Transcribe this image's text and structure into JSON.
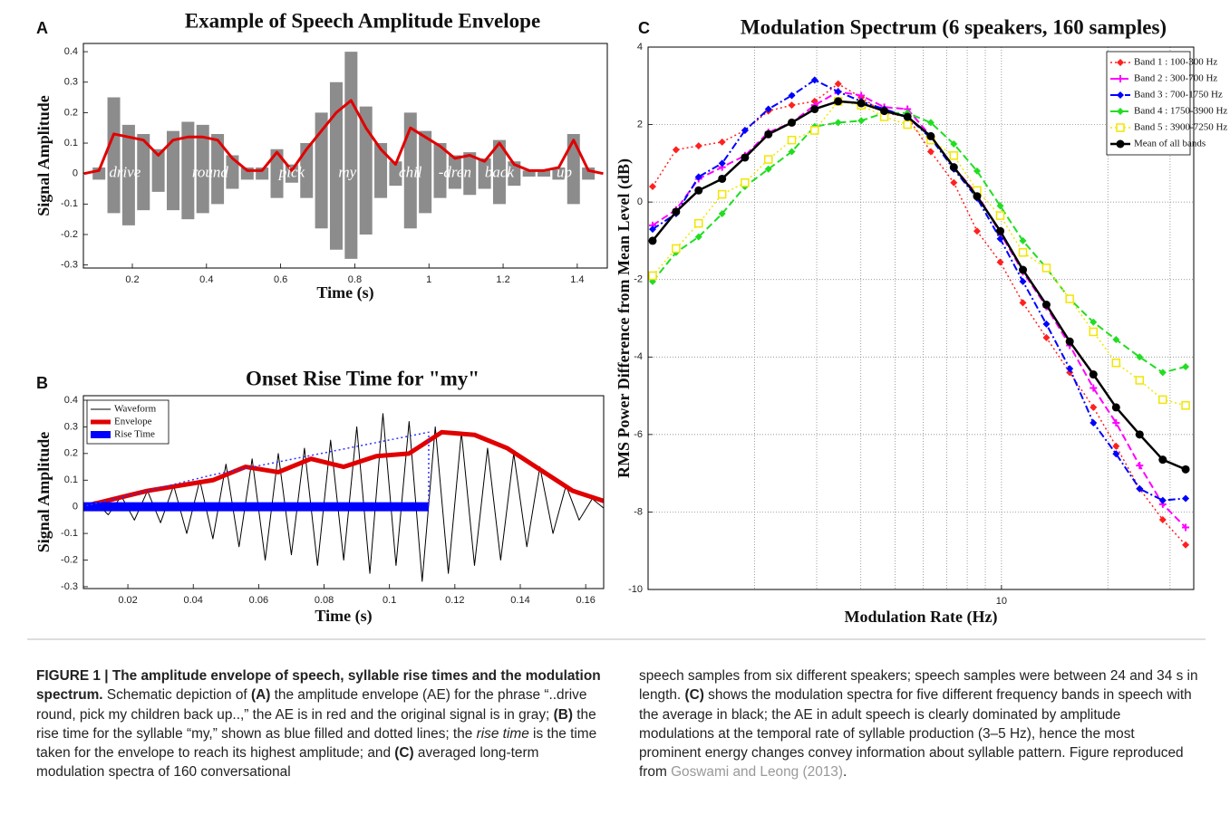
{
  "chart_data": [
    {
      "type": "line",
      "panel": "A",
      "title": "Example of Speech Amplitude Envelope",
      "xlabel": "Time (s)",
      "ylabel": "Signal Amplitude",
      "xlim": [
        0.068,
        1.481
      ],
      "ylim": [
        -0.31,
        0.427
      ],
      "xticks": [
        0.2,
        0.4,
        0.6,
        0.8,
        1,
        1.2,
        1.4
      ],
      "yticks": [
        0.4,
        0.3,
        0.2,
        0.1,
        0,
        -0.1,
        -0.2,
        -0.3
      ],
      "grid": false,
      "syllables": [
        "drive",
        "round",
        "pick",
        "my",
        "chil",
        "-dren",
        "back",
        "up"
      ],
      "x": [
        0.07,
        0.11,
        0.15,
        0.19,
        0.23,
        0.27,
        0.31,
        0.35,
        0.39,
        0.43,
        0.47,
        0.51,
        0.55,
        0.59,
        0.63,
        0.67,
        0.71,
        0.75,
        0.79,
        0.83,
        0.87,
        0.91,
        0.95,
        0.99,
        1.03,
        1.07,
        1.11,
        1.15,
        1.19,
        1.23,
        1.27,
        1.31,
        1.35,
        1.39,
        1.43,
        1.47
      ],
      "series": [
        {
          "kind": "band",
          "color": "#8c8c8c",
          "upper": [
            0,
            0.02,
            0.25,
            0.16,
            0.13,
            0.08,
            0.14,
            0.17,
            0.16,
            0.13,
            0.06,
            0.02,
            0.02,
            0.08,
            0.03,
            0.1,
            0.2,
            0.3,
            0.4,
            0.22,
            0.1,
            0.04,
            0.2,
            0.14,
            0.1,
            0.06,
            0.07,
            0.05,
            0.11,
            0.04,
            0.01,
            0.01,
            0.02,
            0.13,
            0.02,
            0
          ],
          "lower": [
            0,
            -0.02,
            -0.13,
            -0.17,
            -0.12,
            -0.06,
            -0.12,
            -0.15,
            -0.13,
            -0.1,
            -0.05,
            -0.02,
            -0.02,
            -0.08,
            -0.03,
            -0.08,
            -0.18,
            -0.25,
            -0.28,
            -0.2,
            -0.08,
            -0.04,
            -0.18,
            -0.13,
            -0.08,
            -0.05,
            -0.07,
            -0.05,
            -0.1,
            -0.04,
            -0.01,
            -0.01,
            -0.02,
            -0.1,
            -0.02,
            0
          ]
        },
        {
          "color": "#e00000",
          "width": 3,
          "values": [
            0,
            0.01,
            0.13,
            0.12,
            0.11,
            0.06,
            0.11,
            0.12,
            0.12,
            0.11,
            0.05,
            0.01,
            0.01,
            0.07,
            0.01,
            0.08,
            0.14,
            0.2,
            0.24,
            0.15,
            0.08,
            0.03,
            0.15,
            0.12,
            0.09,
            0.05,
            0.06,
            0.04,
            0.1,
            0.03,
            0.01,
            0.01,
            0.02,
            0.11,
            0.01,
            0
          ]
        }
      ]
    },
    {
      "type": "line",
      "panel": "B",
      "title": "Onset Rise Time for \"my\"",
      "xlabel": "Time (s)",
      "ylabel": "Signal Amplitude",
      "xlim": [
        0.0064,
        0.1655
      ],
      "ylim": [
        -0.307,
        0.417
      ],
      "xticks": [
        0.02,
        0.04,
        0.06,
        0.08,
        0.1,
        0.12,
        0.14,
        0.16
      ],
      "yticks": [
        0.4,
        0.3,
        0.2,
        0.1,
        0,
        -0.1,
        -0.2,
        -0.3
      ],
      "grid": false,
      "legend": "upper left",
      "series": [
        {
          "name": "Waveform",
          "color": "#000000",
          "width": 1,
          "x": [
            0.006,
            0.01,
            0.014,
            0.018,
            0.022,
            0.026,
            0.03,
            0.034,
            0.038,
            0.042,
            0.046,
            0.05,
            0.054,
            0.058,
            0.062,
            0.066,
            0.07,
            0.074,
            0.078,
            0.082,
            0.086,
            0.09,
            0.094,
            0.098,
            0.102,
            0.106,
            0.11,
            0.114,
            0.118,
            0.122,
            0.126,
            0.13,
            0.134,
            0.138,
            0.142,
            0.146,
            0.15,
            0.154,
            0.158,
            0.162,
            0.166
          ],
          "values": [
            0,
            0.02,
            -0.03,
            0.04,
            -0.05,
            0.06,
            -0.06,
            0.08,
            -0.1,
            0.1,
            -0.12,
            0.16,
            -0.15,
            0.18,
            -0.2,
            0.2,
            -0.18,
            0.22,
            -0.22,
            0.25,
            -0.2,
            0.3,
            -0.25,
            0.35,
            -0.22,
            0.32,
            -0.28,
            0.3,
            -0.25,
            0.28,
            -0.22,
            0.22,
            -0.2,
            0.2,
            -0.15,
            0.15,
            -0.1,
            0.08,
            -0.05,
            0.03,
            -0.01
          ]
        },
        {
          "name": "Envelope",
          "color": "#e00000",
          "width": 5,
          "x": [
            0.006,
            0.016,
            0.026,
            0.036,
            0.046,
            0.056,
            0.066,
            0.076,
            0.086,
            0.096,
            0.106,
            0.116,
            0.126,
            0.136,
            0.146,
            0.156,
            0.166
          ],
          "values": [
            0,
            0.03,
            0.06,
            0.08,
            0.1,
            0.15,
            0.13,
            0.18,
            0.15,
            0.19,
            0.2,
            0.28,
            0.27,
            0.22,
            0.14,
            0.06,
            0.02
          ]
        },
        {
          "name": "Rise Time",
          "color": "#0000ff",
          "width": 10,
          "x": [
            0.006,
            0.112
          ],
          "values": [
            0,
            0
          ]
        },
        {
          "color": "#3333ff",
          "width": 1.5,
          "dash": "dot",
          "x": [
            0.006,
            0.046,
            0.112,
            0.112
          ],
          "values": [
            0,
            0.12,
            0.28,
            0
          ]
        }
      ]
    },
    {
      "type": "line",
      "panel": "C",
      "title": "Modulation Spectrum (6 speakers, 160 samples)",
      "xlabel": "Modulation Rate (Hz)",
      "ylabel": "RMS Power Difference from Mean Level (dB)",
      "xlog": true,
      "xlim": [
        1,
        35
      ],
      "ylim": [
        -10,
        4
      ],
      "xticks": [
        10
      ],
      "xminor": [
        2,
        3,
        4,
        5,
        6,
        7,
        8,
        9,
        20,
        30
      ],
      "yticks": [
        4,
        2,
        0,
        -2,
        -4,
        -6,
        -8,
        -10
      ],
      "grid": true,
      "legend": "upper right",
      "x": [
        1.03,
        1.2,
        1.39,
        1.62,
        1.88,
        2.19,
        2.55,
        2.96,
        3.45,
        4.01,
        4.66,
        5.42,
        6.31,
        7.33,
        8.53,
        9.92,
        11.5,
        13.4,
        15.6,
        18.2,
        21.1,
        24.6,
        28.6,
        33.2
      ],
      "series": [
        {
          "name": "Band 1 : 100-300 Hz",
          "color": "#ff2020",
          "dash": "dot",
          "marker": "diamond",
          "width": 1.5,
          "values": [
            0.4,
            1.35,
            1.45,
            1.55,
            1.85,
            2.35,
            2.5,
            2.6,
            3.05,
            2.7,
            2.3,
            2.2,
            1.3,
            0.5,
            -0.75,
            -1.55,
            -2.6,
            -3.5,
            -4.4,
            -5.3,
            -6.3,
            -7.4,
            -8.2,
            -8.85
          ]
        },
        {
          "name": "Band 2 : 300-700 Hz",
          "color": "#ff00ff",
          "dash": "dash",
          "marker": "plus",
          "width": 2,
          "values": [
            -0.6,
            -0.2,
            0.6,
            0.9,
            1.2,
            1.8,
            2.05,
            2.5,
            2.85,
            2.75,
            2.45,
            2.4,
            1.7,
            0.9,
            0.2,
            -0.8,
            -1.8,
            -2.7,
            -3.7,
            -4.8,
            -5.7,
            -6.8,
            -7.8,
            -8.4
          ]
        },
        {
          "name": "Band 3 : 700-1750 Hz",
          "color": "#0000ff",
          "dash": "dashdot",
          "marker": "diamond",
          "width": 2,
          "values": [
            -0.7,
            -0.3,
            0.65,
            1.0,
            1.85,
            2.4,
            2.75,
            3.15,
            2.85,
            2.6,
            2.4,
            2.2,
            1.65,
            0.85,
            0.1,
            -0.95,
            -2.05,
            -3.15,
            -4.3,
            -5.7,
            -6.5,
            -7.4,
            -7.7,
            -7.65
          ]
        },
        {
          "name": "Band 4 : 1750-3900 Hz",
          "color": "#22dd22",
          "dash": "dash",
          "marker": "diamond",
          "width": 2,
          "values": [
            -2.05,
            -1.3,
            -0.9,
            -0.3,
            0.4,
            0.85,
            1.3,
            1.95,
            2.05,
            2.1,
            2.3,
            2.3,
            2.05,
            1.5,
            0.8,
            -0.1,
            -1.0,
            -1.7,
            -2.5,
            -3.1,
            -3.55,
            -4.0,
            -4.4,
            -4.25
          ]
        },
        {
          "name": "Band 5 : 3900-7250 Hz",
          "color": "#f2e600",
          "dash": "dot",
          "marker": "square-open",
          "width": 1.5,
          "values": [
            -1.9,
            -1.2,
            -0.55,
            0.2,
            0.5,
            1.1,
            1.6,
            1.85,
            2.6,
            2.5,
            2.2,
            2.0,
            1.6,
            1.2,
            0.3,
            -0.35,
            -1.3,
            -1.7,
            -2.5,
            -3.35,
            -4.15,
            -4.6,
            -5.1,
            -5.25
          ]
        },
        {
          "name": "Mean of all bands",
          "color": "#000000",
          "dash": "solid",
          "marker": "circle",
          "width": 2.5,
          "values": [
            -1.0,
            -0.25,
            0.3,
            0.6,
            1.15,
            1.75,
            2.05,
            2.4,
            2.6,
            2.55,
            2.35,
            2.2,
            1.7,
            0.9,
            0.15,
            -0.75,
            -1.75,
            -2.65,
            -3.6,
            -4.45,
            -5.3,
            -6.0,
            -6.65,
            -6.9
          ]
        }
      ]
    }
  ],
  "caption": {
    "left": [
      {
        "text": "FIGURE 1 | The amplitude envelope of speech, syllable rise times and the modulation spectrum.",
        "bold": true
      },
      {
        "text": " Schematic depiction of "
      },
      {
        "text": "(A)",
        "bold": true
      },
      {
        "text": " the amplitude envelope (AE) for the phrase “..drive round, pick my children back up..,” the AE is in red and the original signal is in gray; "
      },
      {
        "text": "(B)",
        "bold": true
      },
      {
        "text": " the rise time for the syllable “my,” shown as blue filled and dotted lines; the "
      },
      {
        "text": "rise time",
        "italic": true
      },
      {
        "text": " is the time taken for the envelope to reach its highest amplitude; and "
      },
      {
        "text": "(C)",
        "bold": true
      },
      {
        "text": " averaged long-term modulation spectra of 160 conversational"
      }
    ],
    "right": [
      {
        "text": "speech samples from six different speakers; speech samples were between 24 and 34 s in length. "
      },
      {
        "text": "(C)",
        "bold": true
      },
      {
        "text": " shows the modulation spectra for five different frequency bands in speech with the average in black; the AE in adult speech is clearly dominated by amplitude modulations at the temporal rate of syllable production (3–5 Hz), hence the most prominent energy changes convey information about syllable pattern. Figure reproduced from "
      },
      {
        "text": "Goswami and Leong (2013)",
        "link": true
      },
      {
        "text": "."
      }
    ]
  }
}
